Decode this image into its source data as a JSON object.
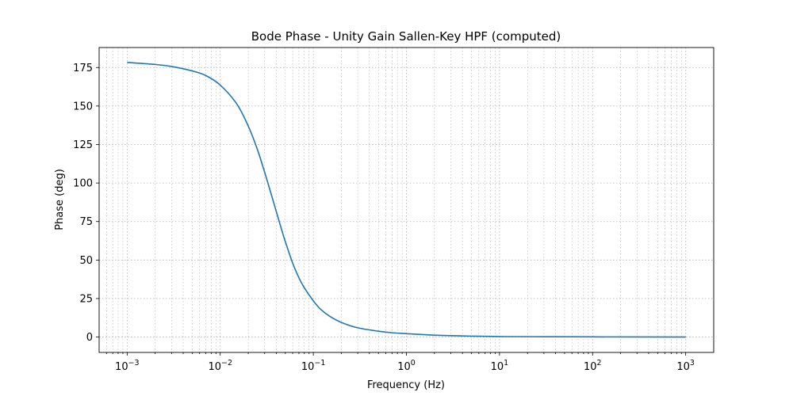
{
  "chart_data": {
    "type": "line",
    "title": "Bode Phase - Unity Gain Sallen-Key HPF (computed)",
    "xlabel": "Frequency (Hz)",
    "ylabel": "Phase (deg)",
    "xscale": "log",
    "xlim": [
      0.0005,
      2000
    ],
    "ylim": [
      -10,
      188
    ],
    "grid": true,
    "line_color": "#1f77b4",
    "x_ticks": [
      {
        "value": 0.001,
        "base": "10",
        "exp": "−3"
      },
      {
        "value": 0.01,
        "base": "10",
        "exp": "−2"
      },
      {
        "value": 0.1,
        "base": "10",
        "exp": "−1"
      },
      {
        "value": 1,
        "base": "10",
        "exp": "0"
      },
      {
        "value": 10,
        "base": "10",
        "exp": "1"
      },
      {
        "value": 100,
        "base": "10",
        "exp": "2"
      },
      {
        "value": 1000,
        "base": "10",
        "exp": "3"
      }
    ],
    "y_ticks": [
      {
        "value": 0,
        "label": "0"
      },
      {
        "value": 25,
        "label": "25"
      },
      {
        "value": 50,
        "label": "50"
      },
      {
        "value": 75,
        "label": "75"
      },
      {
        "value": 100,
        "label": "100"
      },
      {
        "value": 125,
        "label": "125"
      },
      {
        "value": 150,
        "label": "150"
      },
      {
        "value": 175,
        "label": "175"
      }
    ],
    "series": [
      {
        "x": [
          0.001,
          0.002,
          0.003,
          0.005,
          0.007,
          0.01,
          0.015,
          0.02,
          0.025,
          0.03,
          0.035,
          0.04,
          0.045,
          0.05,
          0.06,
          0.07,
          0.08,
          0.1,
          0.12,
          0.15,
          0.2,
          0.3,
          0.5,
          0.7,
          1,
          2,
          5,
          10,
          30,
          100,
          1000
        ],
        "y": [
          178.3,
          177.0,
          175.7,
          172.8,
          169.8,
          163.6,
          151.5,
          137.0,
          122.0,
          107.0,
          93.5,
          81.5,
          71.0,
          62.0,
          48.0,
          38.5,
          32.0,
          23.5,
          18.0,
          13.5,
          9.5,
          6.0,
          3.8,
          2.8,
          2.2,
          1.2,
          0.6,
          0.3,
          0.2,
          0.1,
          0.0
        ]
      }
    ]
  }
}
